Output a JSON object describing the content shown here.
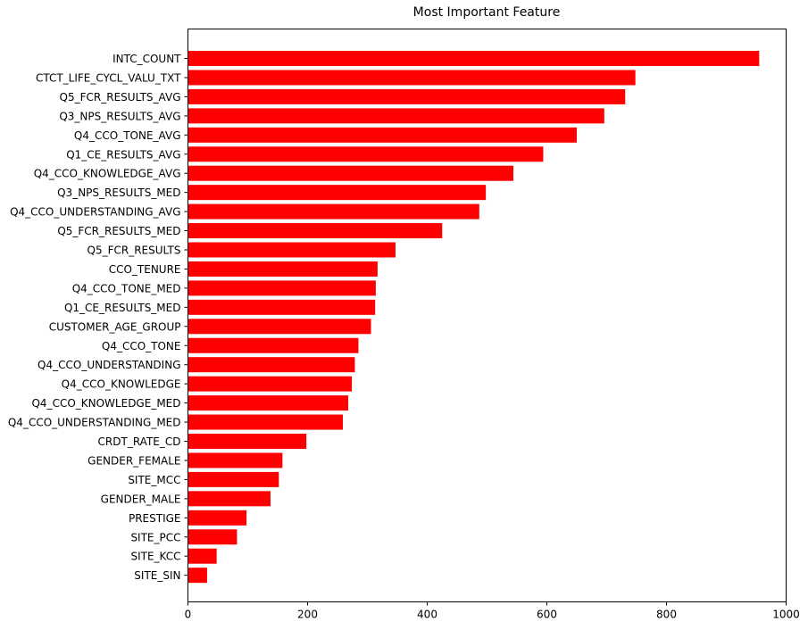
{
  "chart_data": {
    "type": "bar",
    "orientation": "horizontal",
    "title": "Most Important Feature",
    "xlabel": "",
    "ylabel": "",
    "xlim": [
      0,
      1000
    ],
    "xticks": [
      0,
      200,
      400,
      600,
      800,
      1000
    ],
    "grid": false,
    "legend": "none",
    "bar_color": "#ff0000",
    "categories": [
      "INTC_COUNT",
      "CTCT_LIFE_CYCL_VALU_TXT",
      "Q5_FCR_RESULTS_AVG",
      "Q3_NPS_RESULTS_AVG",
      "Q4_CCO_TONE_AVG",
      "Q1_CE_RESULTS_AVG",
      "Q4_CCO_KNOWLEDGE_AVG",
      "Q3_NPS_RESULTS_MED",
      "Q4_CCO_UNDERSTANDING_AVG",
      "Q5_FCR_RESULTS_MED",
      "Q5_FCR_RESULTS",
      "CCO_TENURE",
      "Q4_CCO_TONE_MED",
      "Q1_CE_RESULTS_MED",
      "CUSTOMER_AGE_GROUP",
      "Q4_CCO_TONE",
      "Q4_CCO_UNDERSTANDING",
      "Q4_CCO_KNOWLEDGE",
      "Q4_CCO_KNOWLEDGE_MED",
      "Q4_CCO_UNDERSTANDING_MED",
      "CRDT_RATE_CD",
      "GENDER_FEMALE",
      "SITE_MCC",
      "GENDER_MALE",
      "PRESTIGE",
      "SITE_PCC",
      "SITE_KCC",
      "SITE_SIN"
    ],
    "values": [
      955,
      748,
      731,
      696,
      650,
      594,
      544,
      498,
      487,
      425,
      347,
      317,
      314,
      313,
      306,
      285,
      279,
      274,
      268,
      259,
      198,
      158,
      152,
      138,
      98,
      82,
      48,
      32
    ]
  }
}
